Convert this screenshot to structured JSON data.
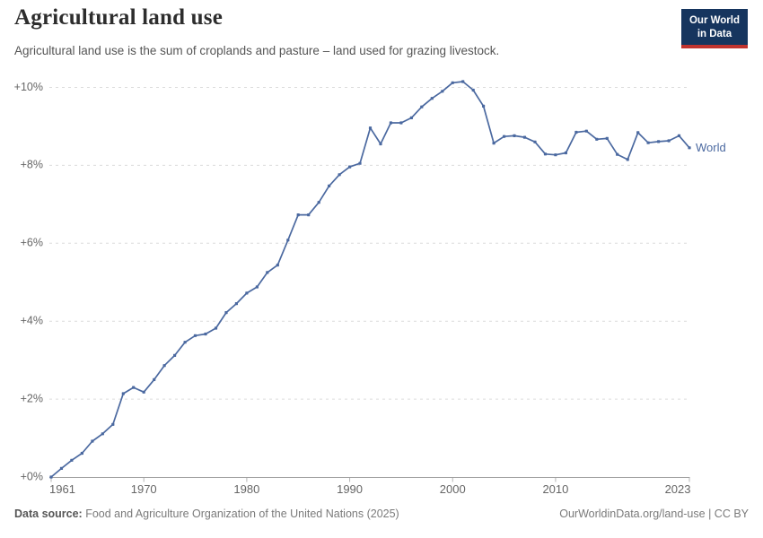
{
  "header": {
    "title": "Agricultural land use",
    "subtitle": "Agricultural land use is the sum of croplands and pasture – land used for grazing livestock.",
    "logo": {
      "line1": "Our World",
      "line2": "in Data",
      "bg_color": "#16355e",
      "stripe_color": "#c0332e"
    }
  },
  "chart_data": {
    "type": "line",
    "title": "Agricultural land use",
    "xlabel": "",
    "ylabel": "",
    "xlim": [
      1961,
      2023
    ],
    "ylim": [
      0,
      10.35
    ],
    "grid": true,
    "legend_position": "end-of-line",
    "x_ticks": [
      1961,
      1970,
      1980,
      1990,
      2000,
      2010,
      2023
    ],
    "y_ticks": [
      0,
      2,
      4,
      6,
      8,
      10
    ],
    "y_tick_prefix": "+",
    "y_tick_suffix": "%",
    "axis_color": "#a0a0a0",
    "grid_color": "#dcdcdc",
    "tick_label_color": "#666666",
    "series": [
      {
        "name": "World",
        "color": "#4b69a0",
        "x": [
          1961,
          1962,
          1963,
          1964,
          1965,
          1966,
          1967,
          1968,
          1969,
          1970,
          1971,
          1972,
          1973,
          1974,
          1975,
          1976,
          1977,
          1978,
          1979,
          1980,
          1981,
          1982,
          1983,
          1984,
          1985,
          1986,
          1987,
          1988,
          1989,
          1990,
          1991,
          1992,
          1993,
          1994,
          1995,
          1996,
          1997,
          1998,
          1999,
          2000,
          2001,
          2002,
          2003,
          2004,
          2005,
          2006,
          2007,
          2008,
          2009,
          2010,
          2011,
          2012,
          2013,
          2014,
          2015,
          2016,
          2017,
          2018,
          2019,
          2020,
          2021,
          2022,
          2023
        ],
        "values": [
          0,
          0.22,
          0.43,
          0.61,
          0.92,
          1.11,
          1.35,
          2.14,
          2.3,
          2.18,
          2.5,
          2.86,
          3.12,
          3.46,
          3.63,
          3.67,
          3.82,
          4.22,
          4.45,
          4.72,
          4.88,
          5.25,
          5.44,
          6.08,
          6.73,
          6.73,
          7.05,
          7.47,
          7.76,
          7.96,
          8.05,
          8.96,
          8.55,
          9.09,
          9.09,
          9.22,
          9.5,
          9.72,
          9.9,
          10.12,
          10.15,
          9.93,
          9.52,
          8.57,
          8.74,
          8.76,
          8.72,
          8.6,
          8.29,
          8.27,
          8.32,
          8.85,
          8.88,
          8.67,
          8.69,
          8.28,
          8.15,
          8.84,
          8.58,
          8.61,
          8.63,
          8.76,
          8.45
        ]
      }
    ]
  },
  "footer": {
    "source_label": "Data source:",
    "source_text": " Food and Agriculture Organization of the United Nations (2025)",
    "link_text": "OurWorldinData.org/land-use",
    "separator": " | ",
    "license_text": "CC BY"
  }
}
